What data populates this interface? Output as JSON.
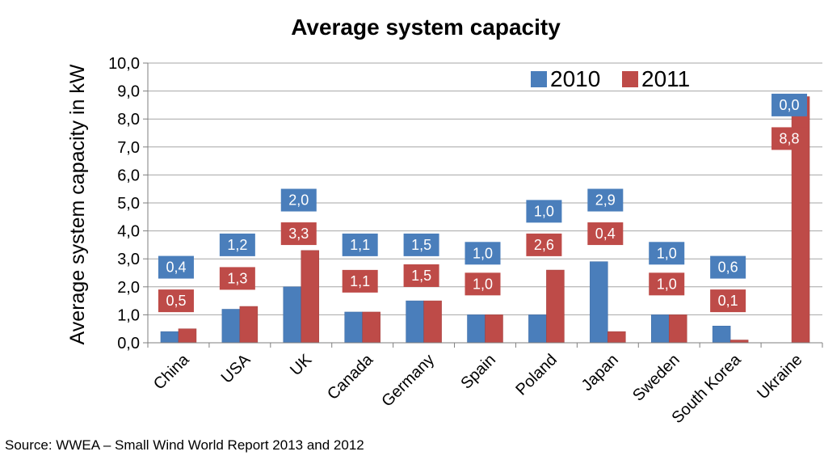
{
  "chart_data": {
    "type": "bar",
    "title": "Average system capacity",
    "ylabel": "Average system capacity in kW",
    "xlabel": "",
    "ylim": [
      0,
      10
    ],
    "yticks": [
      "0,0",
      "1,0",
      "2,0",
      "3,0",
      "4,0",
      "5,0",
      "6,0",
      "7,0",
      "8,0",
      "9,0",
      "10,0"
    ],
    "grid": true,
    "legend_position": "top-right",
    "categories": [
      "China",
      "USA",
      "UK",
      "Canada",
      "Germany",
      "Spain",
      "Poland",
      "Japan",
      "Sweden",
      "South Korea",
      "Ukraine"
    ],
    "series": [
      {
        "name": "2010",
        "color": "#4a7ebb",
        "values": [
          0.4,
          1.2,
          2.0,
          1.1,
          1.5,
          1.0,
          1.0,
          2.9,
          1.0,
          0.6,
          0.0
        ],
        "labels": [
          "0,4",
          "1,2",
          "2,0",
          "1,1",
          "1,5",
          "1,0",
          "1,0",
          "2,9",
          "1,0",
          "0,6",
          "0,0"
        ]
      },
      {
        "name": "2011",
        "color": "#be4b48",
        "values": [
          0.5,
          1.3,
          3.3,
          1.1,
          1.5,
          1.0,
          2.6,
          0.4,
          1.0,
          0.1,
          8.8
        ],
        "labels": [
          "0,5",
          "1,3",
          "3,3",
          "1,1",
          "1,5",
          "1,0",
          "2,6",
          "0,4",
          "1,0",
          "0,1",
          "8,8"
        ]
      }
    ]
  },
  "source": "Source: WWEA – Small Wind World Report 2013 and 2012"
}
